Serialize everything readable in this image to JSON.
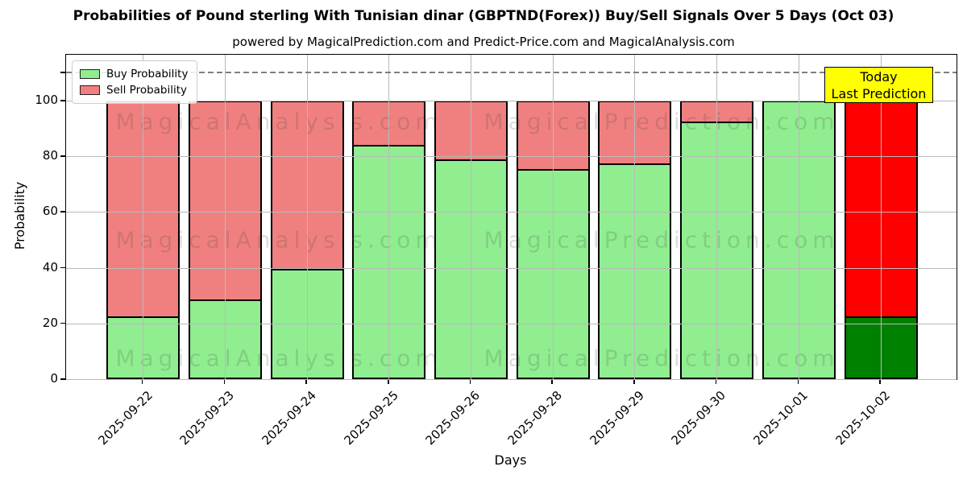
{
  "chart_data": {
    "type": "bar",
    "stacked": true,
    "title": "Probabilities of Pound sterling With Tunisian dinar (GBPTND(Forex)) Buy/Sell Signals Over 5 Days (Oct 03)",
    "subtitle": "powered by MagicalPrediction.com and Predict-Price.com and MagicalAnalysis.com",
    "xlabel": "Days",
    "ylabel": "Probability",
    "ylim": [
      0,
      116.5
    ],
    "yticks": [
      0,
      20,
      40,
      60,
      80,
      100
    ],
    "unlabeled_ytick": 110,
    "dashed_hline_y": 110,
    "grid": true,
    "legend_position": "upper left",
    "categories": [
      "2025-09-22",
      "2025-09-23",
      "2025-09-24",
      "2025-09-25",
      "2025-09-26",
      "2025-09-28",
      "2025-09-29",
      "2025-09-30",
      "2025-10-01",
      "2025-10-02"
    ],
    "series": [
      {
        "name": "Buy Probability",
        "values": [
          22.5,
          28.5,
          39.5,
          84,
          79,
          75.5,
          77.5,
          92.5,
          100,
          22.5
        ],
        "color": "#90EE90",
        "today_color": "#008000"
      },
      {
        "name": "Sell Probability",
        "values": [
          77.5,
          71.5,
          60.5,
          16,
          21,
          24.5,
          22.5,
          7.5,
          0,
          77.5
        ],
        "color": "#F08080",
        "today_color": "#FF0000"
      }
    ],
    "bar_edge_color": "#000000",
    "annotation": {
      "line1": "Today",
      "line2": "Last Prediction",
      "bg_color": "#ffff00"
    },
    "watermarks": {
      "left_text": "MagicalAnalysis.com",
      "right_text": "MagicalPrediction.com",
      "row_count": 3
    },
    "colors": {
      "grid": "#b9b9b9",
      "dashed_line": "#7f7f7f",
      "legend_border": "#cccccc"
    }
  }
}
